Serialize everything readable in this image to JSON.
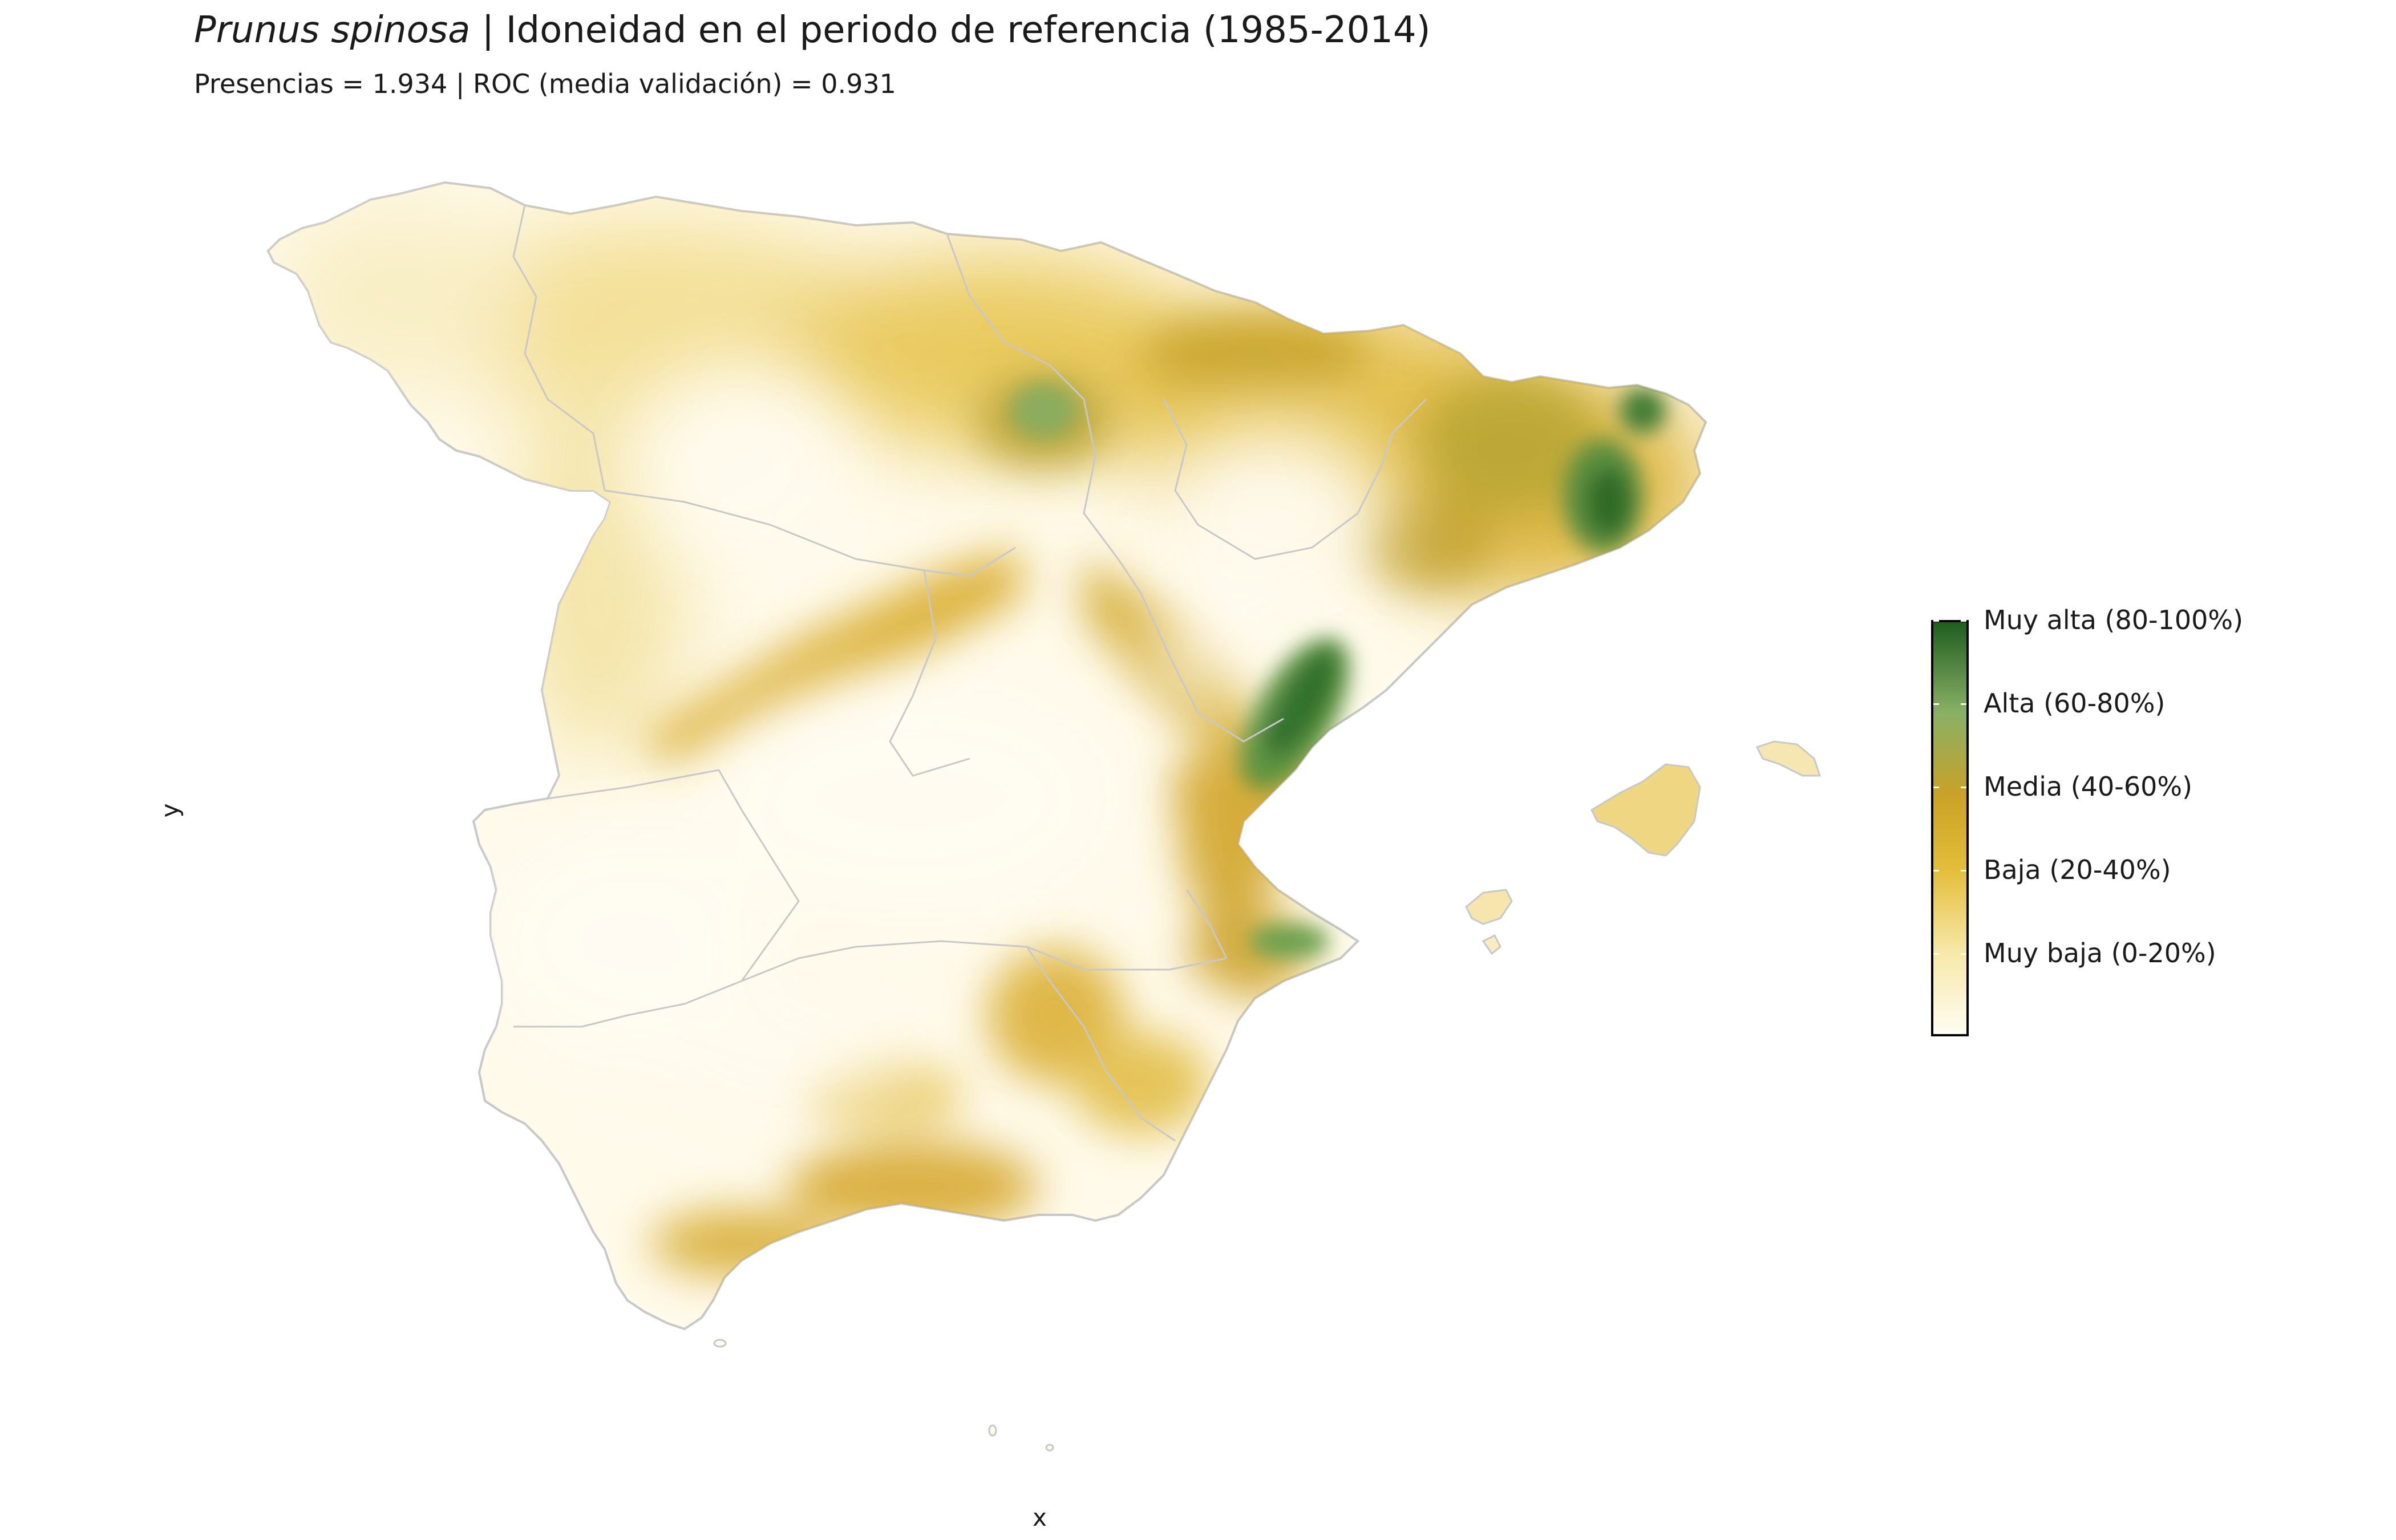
{
  "title": {
    "species": "Prunus spinosa",
    "rest": " | Idoneidad en el periodo de referencia (1985-2014)"
  },
  "subtitle": "Presencias = 1.934  |  ROC (media validación) = 0.931",
  "axes": {
    "x_label": "x",
    "y_label": "y"
  },
  "legend": {
    "labels": [
      "Muy alta (80-100%)",
      "Alta (60-80%)",
      "Media (40-60%)",
      "Baja (20-40%)",
      "Muy baja (0-20%)"
    ],
    "colors": {
      "very_low": "#fffdf2",
      "low": "#f7e8a8",
      "medium_low": "#e3bd3a",
      "medium": "#c9a227",
      "high": "#8ab066",
      "very_high": "#1e5e1e"
    }
  },
  "map": {
    "boundary_color": "#c8c8c8",
    "regions": [
      "Spain mainland",
      "Balearic Islands",
      "Ceuta",
      "Melilla"
    ]
  }
}
